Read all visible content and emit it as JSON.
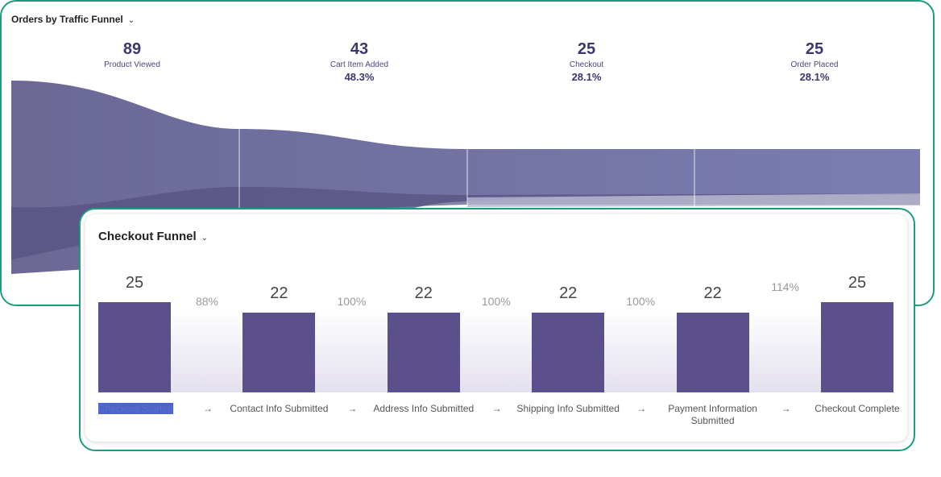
{
  "traffic_funnel": {
    "title": "Orders by Traffic Funnel",
    "stages": [
      {
        "count": "89",
        "label": "Product Viewed",
        "pct": ""
      },
      {
        "count": "43",
        "label": "Cart Item Added",
        "pct": "48.3%"
      },
      {
        "count": "25",
        "label": "Checkout",
        "pct": "28.1%"
      },
      {
        "count": "25",
        "label": "Order Placed",
        "pct": "28.1%"
      }
    ]
  },
  "checkout_funnel": {
    "title": "Checkout Funnel",
    "steps": [
      {
        "value": "25",
        "label": "Checkout Started"
      },
      {
        "value": "22",
        "label": "Contact Info Submitted"
      },
      {
        "value": "22",
        "label": "Address Info Submitted"
      },
      {
        "value": "22",
        "label": "Shipping Info Submitted"
      },
      {
        "value": "22",
        "label": "Payment Information Submitted"
      },
      {
        "value": "25",
        "label": "Checkout Complete"
      }
    ],
    "conversions": [
      "88%",
      "100%",
      "100%",
      "100%",
      "114%"
    ]
  },
  "colors": {
    "accent": "#1c9c7f",
    "bar": "#5b4f8c"
  }
}
